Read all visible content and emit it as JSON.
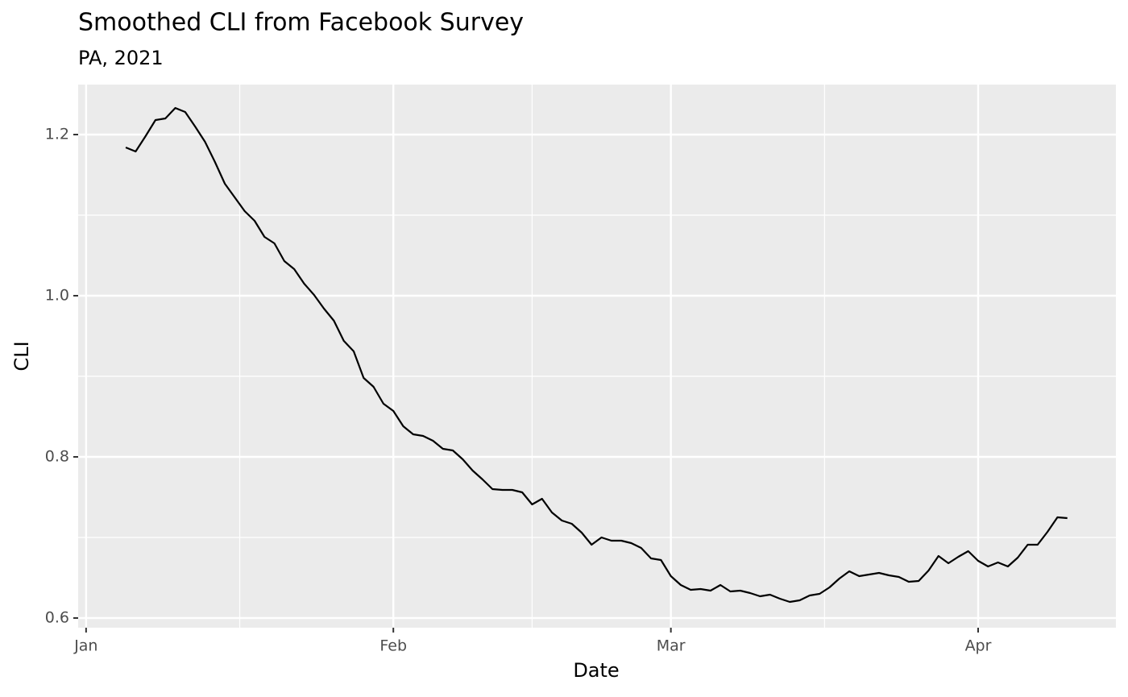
{
  "chart_data": {
    "type": "line",
    "title": "Smoothed CLI from Facebook Survey",
    "subtitle": "PA, 2021",
    "x_label": "Date",
    "y_label": "CLI",
    "x": [
      4,
      5,
      6,
      7,
      8,
      9,
      10,
      11,
      12,
      13,
      14,
      15,
      16,
      17,
      18,
      19,
      20,
      21,
      22,
      23,
      24,
      25,
      26,
      27,
      28,
      29,
      30,
      31,
      32,
      33,
      34,
      35,
      36,
      37,
      38,
      39,
      40,
      41,
      42,
      43,
      44,
      45,
      46,
      47,
      48,
      49,
      50,
      51,
      52,
      53,
      54,
      55,
      56,
      57,
      58,
      59,
      60,
      61,
      62,
      63,
      64,
      65,
      66,
      67,
      68,
      69,
      70,
      71,
      72,
      73,
      74,
      75,
      76,
      77,
      78,
      79,
      80,
      81,
      82,
      83,
      84,
      85,
      86,
      87,
      88,
      89,
      90,
      91,
      92,
      93,
      94,
      95,
      96,
      97,
      98,
      99
    ],
    "series": [
      {
        "name": "CLI",
        "color": "#000000",
        "values": [
          1.184,
          1.179,
          1.198,
          1.218,
          1.22,
          1.233,
          1.228,
          1.21,
          1.191,
          1.166,
          1.139,
          1.122,
          1.105,
          1.093,
          1.073,
          1.065,
          1.043,
          1.033,
          1.015,
          1.001,
          0.984,
          0.969,
          0.944,
          0.931,
          0.898,
          0.887,
          0.866,
          0.857,
          0.838,
          0.828,
          0.826,
          0.82,
          0.81,
          0.808,
          0.797,
          0.783,
          0.772,
          0.76,
          0.759,
          0.759,
          0.756,
          0.741,
          0.748,
          0.731,
          0.721,
          0.717,
          0.706,
          0.691,
          0.7,
          0.696,
          0.696,
          0.693,
          0.687,
          0.674,
          0.672,
          0.652,
          0.641,
          0.635,
          0.636,
          0.634,
          0.641,
          0.633,
          0.634,
          0.631,
          0.627,
          0.629,
          0.624,
          0.62,
          0.622,
          0.628,
          0.63,
          0.638,
          0.649,
          0.658,
          0.652,
          0.654,
          0.656,
          0.653,
          0.651,
          0.645,
          0.646,
          0.659,
          0.677,
          0.668,
          0.676,
          0.683,
          0.671,
          0.664,
          0.669,
          0.664,
          0.675,
          0.691,
          0.691,
          0.707,
          0.725,
          0.724
        ]
      }
    ],
    "xlim": [
      -0.8,
      103.9
    ],
    "xticks": [
      {
        "value": 0,
        "label": "Jan"
      },
      {
        "value": 31,
        "label": "Feb"
      },
      {
        "value": 59,
        "label": "Mar"
      },
      {
        "value": 90,
        "label": "Apr"
      }
    ],
    "ylim": [
      0.588,
      1.262
    ],
    "yticks": [
      0.6,
      0.8,
      {
        "value": 1,
        "label": "1.0"
      },
      1.2
    ],
    "grid": true
  }
}
